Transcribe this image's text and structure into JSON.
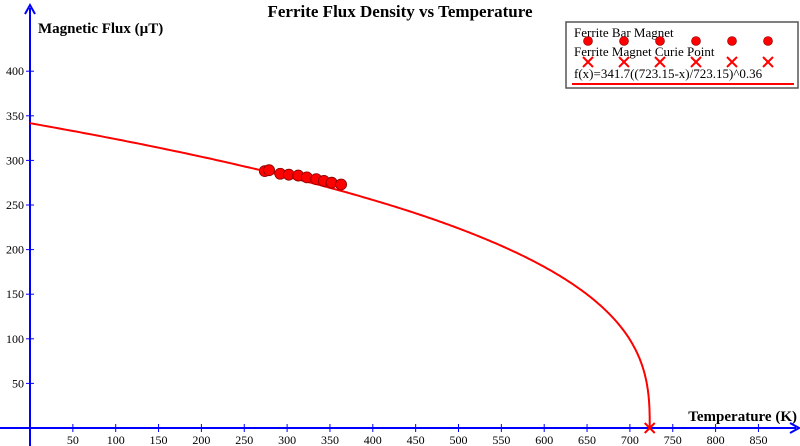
{
  "chart_data": {
    "type": "scatter",
    "title": "Ferrite Flux Density vs Temperature",
    "xlabel": "Temperature (K)",
    "ylabel": "Magnetic Flux (µT)",
    "xlim": [
      0,
      900
    ],
    "ylim": [
      0,
      450
    ],
    "x_ticks": [
      50,
      100,
      150,
      200,
      250,
      300,
      350,
      400,
      450,
      500,
      550,
      600,
      650,
      700,
      750,
      800,
      850
    ],
    "y_ticks": [
      50,
      100,
      150,
      200,
      250,
      300,
      350,
      400
    ],
    "grid": false,
    "legend_position": "top-right",
    "series": [
      {
        "name": "Ferrite Bar Magnet",
        "marker": "circle",
        "color": "#ff0000",
        "x": [
          274,
          279,
          292,
          302,
          313,
          323,
          334,
          343,
          352,
          363
        ],
        "y": [
          288,
          289,
          285,
          284,
          283,
          281,
          279,
          277,
          275,
          273
        ]
      },
      {
        "name": "Ferrite Magnet Curie Point",
        "marker": "x",
        "color": "#ff0000",
        "x": [
          723.15
        ],
        "y": [
          0
        ]
      },
      {
        "name": "f(x)=341.7((723.15-x)/723.15)^0.36",
        "type": "line",
        "color": "#ff0000",
        "a": 341.7,
        "tc": 723.15,
        "exponent": 0.36
      }
    ]
  },
  "colors": {
    "axis": "#0000ff",
    "data": "#ff0000"
  }
}
